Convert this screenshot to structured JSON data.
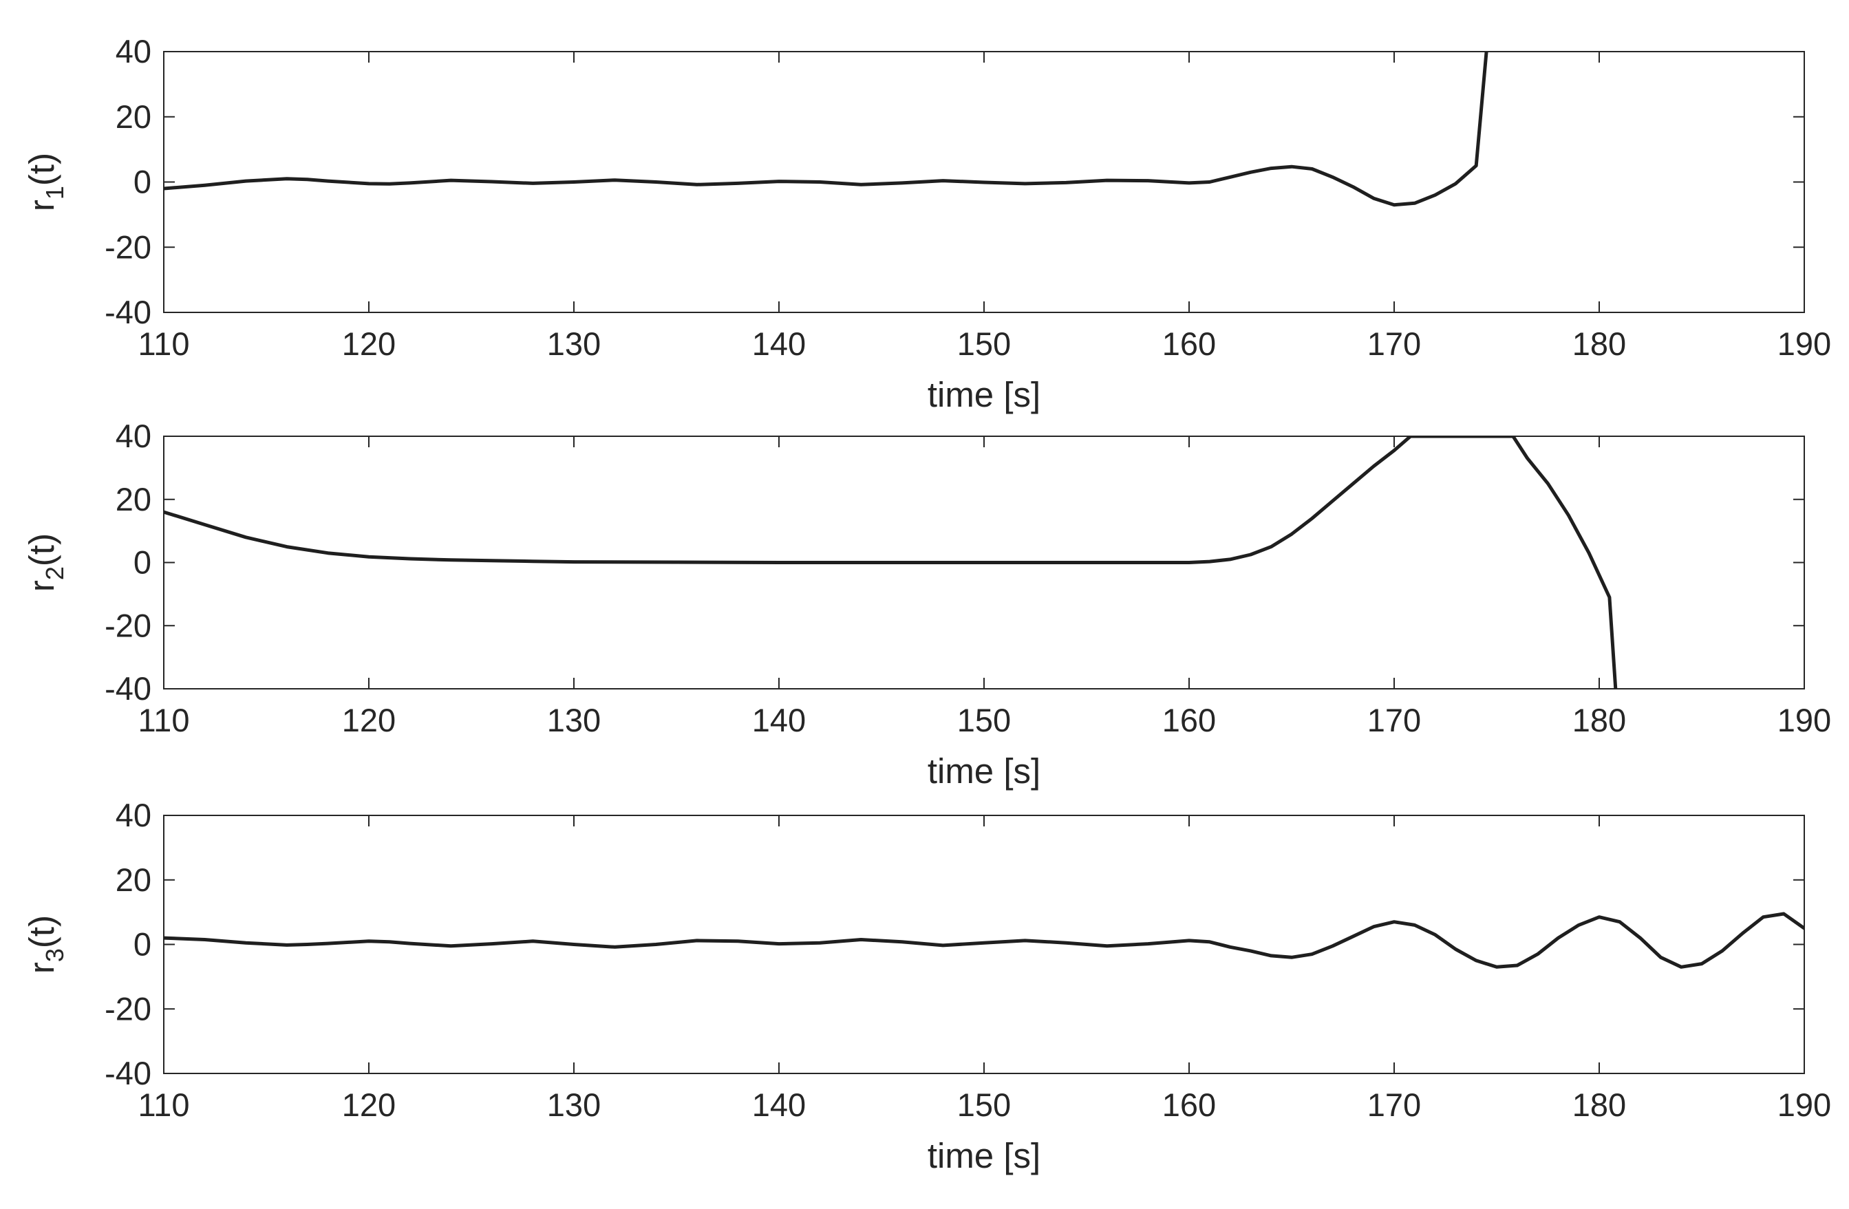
{
  "figure": {
    "background": "#ffffff",
    "line_color": "#1f1f1f",
    "axis_color": "#262626"
  },
  "chart_data": [
    {
      "type": "line",
      "title": "",
      "xlabel": "time [s]",
      "ylabel": {
        "base": "r",
        "subscript": "1",
        "suffix": "(t)"
      },
      "xlim": [
        110,
        190
      ],
      "ylim": [
        -40,
        40
      ],
      "xticks": [
        110,
        120,
        130,
        140,
        150,
        160,
        170,
        180,
        190
      ],
      "yticks": [
        40,
        20,
        0,
        -20,
        -40
      ],
      "grid": false,
      "series": [
        {
          "name": "r1(t)",
          "x": [
            110,
            112,
            114,
            116,
            117,
            118,
            120,
            121,
            122,
            124,
            126,
            128,
            130,
            132,
            134,
            136,
            138,
            140,
            142,
            144,
            146,
            148,
            150,
            152,
            154,
            156,
            158,
            160,
            161,
            162,
            163,
            164,
            165,
            166,
            167,
            168,
            169,
            170,
            171,
            172,
            173,
            174,
            174.5
          ],
          "y": [
            -2,
            -1,
            0.3,
            1,
            0.8,
            0.3,
            -0.5,
            -0.6,
            -0.3,
            0.5,
            0.1,
            -0.4,
            0,
            0.6,
            0,
            -0.8,
            -0.4,
            0.2,
            0,
            -0.8,
            -0.3,
            0.4,
            -0.1,
            -0.5,
            -0.2,
            0.5,
            0.4,
            -0.3,
            0,
            1.5,
            3,
            4.2,
            4.7,
            4,
            1.5,
            -1.5,
            -5,
            -7,
            -6.5,
            -4,
            -0.5,
            5,
            40
          ]
        }
      ]
    },
    {
      "type": "line",
      "title": "",
      "xlabel": "time [s]",
      "ylabel": {
        "base": "r",
        "subscript": "2",
        "suffix": "(t)"
      },
      "xlim": [
        110,
        190
      ],
      "ylim": [
        -40,
        40
      ],
      "xticks": [
        110,
        120,
        130,
        140,
        150,
        160,
        170,
        180,
        190
      ],
      "yticks": [
        40,
        20,
        0,
        -20,
        -40
      ],
      "grid": false,
      "series": [
        {
          "name": "r2(t)",
          "x": [
            110,
            112,
            114,
            116,
            118,
            120,
            122,
            124,
            126,
            128,
            130,
            135,
            140,
            145,
            150,
            155,
            160,
            161,
            162,
            163,
            164,
            165,
            166,
            167,
            168,
            169,
            170,
            170.8,
            175.8,
            176.5,
            177.5,
            178.5,
            179.5,
            180.5,
            180.8
          ],
          "y": [
            16,
            12,
            8,
            5,
            3,
            1.8,
            1.2,
            0.8,
            0.6,
            0.4,
            0.2,
            0.1,
            0,
            0,
            0,
            0,
            0,
            0.3,
            1,
            2.5,
            5,
            9,
            14,
            19.5,
            25,
            30.5,
            35.5,
            40,
            40,
            33,
            25,
            15,
            3,
            -11,
            -40
          ]
        }
      ]
    },
    {
      "type": "line",
      "title": "",
      "xlabel": "time [s]",
      "ylabel": {
        "base": "r",
        "subscript": "3",
        "suffix": "(t)"
      },
      "xlim": [
        110,
        190
      ],
      "ylim": [
        -40,
        40
      ],
      "xticks": [
        110,
        120,
        130,
        140,
        150,
        160,
        170,
        180,
        190
      ],
      "yticks": [
        40,
        20,
        0,
        -20,
        -40
      ],
      "grid": false,
      "series": [
        {
          "name": "r3(t)",
          "x": [
            110,
            112,
            114,
            116,
            117,
            118,
            120,
            121,
            122,
            124,
            126,
            128,
            130,
            132,
            134,
            136,
            138,
            140,
            142,
            144,
            146,
            148,
            150,
            152,
            154,
            156,
            158,
            160,
            161,
            162,
            163,
            164,
            165,
            166,
            167,
            168,
            169,
            170,
            171,
            172,
            173,
            174,
            175,
            176,
            177,
            178,
            179,
            180,
            181,
            182,
            183,
            184,
            185,
            186,
            187,
            188,
            189,
            190
          ],
          "y": [
            2,
            1.5,
            0.5,
            -0.2,
            0,
            0.3,
            1,
            0.8,
            0.3,
            -0.5,
            0.2,
            1,
            0,
            -0.8,
            0,
            1.2,
            1,
            0.2,
            0.5,
            1.5,
            0.8,
            -0.3,
            0.5,
            1.2,
            0.5,
            -0.5,
            0.2,
            1.2,
            0.8,
            -0.8,
            -2,
            -3.5,
            -4,
            -3,
            -0.5,
            2.5,
            5.5,
            7,
            6,
            3,
            -1.5,
            -5,
            -7,
            -6.5,
            -3,
            2,
            6,
            8.5,
            7,
            2,
            -4,
            -7,
            -6,
            -2,
            3.5,
            8.5,
            9.5,
            5
          ]
        }
      ]
    }
  ]
}
